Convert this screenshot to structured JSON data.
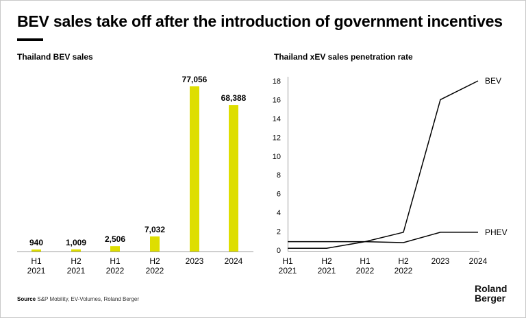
{
  "title": "BEV sales take off after the introduction of government incentives",
  "source_label": "Source",
  "source_text": "S&P Mobility, EV-Volumes, Roland Berger",
  "logo": [
    "Roland",
    "Berger"
  ],
  "colors": {
    "bar": "#dede00",
    "line": "#000000"
  },
  "chart_data": [
    {
      "type": "bar",
      "title": "Thailand BEV sales",
      "categories": [
        [
          "H1",
          "2021"
        ],
        [
          "H2",
          "2021"
        ],
        [
          "H1",
          "2022"
        ],
        [
          "H2",
          "2022"
        ],
        [
          "2023"
        ],
        [
          "2024"
        ]
      ],
      "values": [
        940,
        1009,
        2506,
        7032,
        77056,
        68388
      ],
      "labels": [
        "940",
        "1,009",
        "2,506",
        "7,032",
        "77,056",
        "68,388"
      ],
      "ylim": [
        0,
        77056
      ]
    },
    {
      "type": "line",
      "title": "Thailand xEV sales penetration rate",
      "categories": [
        [
          "H1",
          "2021"
        ],
        [
          "H2",
          "2021"
        ],
        [
          "H1",
          "2022"
        ],
        [
          "H2",
          "2022"
        ],
        [
          "2023"
        ],
        [
          "2024"
        ]
      ],
      "yticks": [
        0,
        2,
        4,
        6,
        8,
        10,
        12,
        14,
        16,
        18
      ],
      "ylim": [
        0,
        18
      ],
      "series": [
        {
          "name": "BEV",
          "values": [
            0.2,
            0.2,
            0.9,
            1.9,
            16,
            18
          ]
        },
        {
          "name": "PHEV",
          "values": [
            0.9,
            0.9,
            0.9,
            0.8,
            1.9,
            1.9
          ]
        }
      ]
    }
  ]
}
